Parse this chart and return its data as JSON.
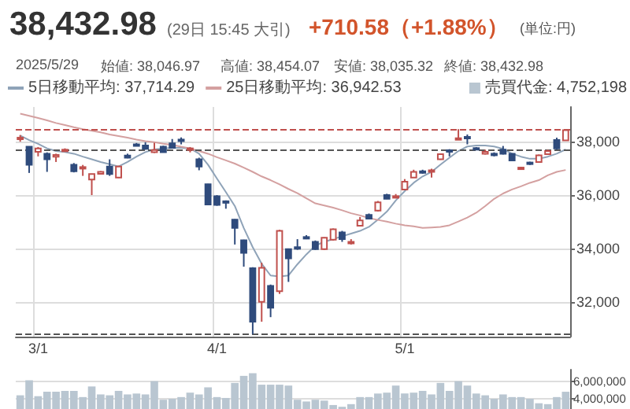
{
  "chart_data": [
    {
      "type": "candlestick",
      "title": "38,432.98",
      "subtitle": "(29日 15:45 大引)",
      "annotations": [
        "+710.58（+1.88%）",
        "(単位:円)",
        "2025/5/29",
        "始値: 38,046.97",
        "高値: 38,454.07",
        "安値: 38,035.32",
        "終値: 38,432.98"
      ],
      "categories": [
        null,
        null,
        "3/1",
        null,
        null,
        null,
        null,
        null,
        null,
        null,
        null,
        null,
        null,
        null,
        null,
        null,
        null,
        null,
        null,
        null,
        null,
        null,
        "4/1",
        null,
        null,
        null,
        null,
        null,
        null,
        null,
        null,
        null,
        null,
        null,
        null,
        null,
        null,
        null,
        null,
        null,
        null,
        null,
        null,
        "5/1",
        null,
        null,
        null,
        null,
        null,
        null,
        null,
        null,
        null,
        null,
        null,
        null,
        null,
        null,
        null,
        null,
        null,
        null
      ],
      "ohlc": [
        [
          38100,
          38250,
          38000,
          38150
        ],
        [
          37815,
          37815,
          36830,
          37135
        ],
        [
          37620,
          37800,
          37450,
          37750
        ],
        [
          37550,
          37600,
          36870,
          37340
        ],
        [
          37440,
          37550,
          37240,
          37500
        ],
        [
          37650,
          37750,
          37620,
          37700
        ],
        [
          37135,
          37200,
          36850,
          36890
        ],
        [
          37000,
          37130,
          36720,
          37050
        ],
        [
          36580,
          36800,
          36000,
          36790
        ],
        [
          36800,
          36900,
          36780,
          36870
        ],
        [
          37070,
          37340,
          36720,
          36790
        ],
        [
          36660,
          37100,
          36640,
          37070
        ],
        [
          37480,
          37550,
          37380,
          37400
        ],
        [
          37900,
          37950,
          37850,
          37860
        ],
        [
          37860,
          37980,
          37700,
          37730
        ],
        [
          37610,
          37960,
          37580,
          37690
        ],
        [
          37810,
          37850,
          37600,
          37610
        ],
        [
          37940,
          38100,
          37750,
          37770
        ],
        [
          38080,
          38160,
          37900,
          38040
        ],
        [
          37700,
          37800,
          37600,
          37750
        ],
        [
          37340,
          37400,
          36930,
          37070
        ],
        [
          36410,
          36420,
          35620,
          35650
        ],
        [
          35960,
          36000,
          35600,
          35630
        ],
        [
          35770,
          35800,
          35490,
          35730
        ],
        [
          35080,
          35100,
          34150,
          34770
        ],
        [
          34310,
          34330,
          33320,
          33840
        ],
        [
          33260,
          33300,
          30792,
          31260
        ],
        [
          32000,
          33470,
          31260,
          33280
        ],
        [
          32600,
          32650,
          31430,
          31780
        ],
        [
          32400,
          34700,
          32300,
          34660
        ],
        [
          33980,
          34000,
          32750,
          33630
        ],
        [
          34050,
          34350,
          33950,
          34040
        ],
        [
          34430,
          34500,
          34350,
          34400
        ],
        [
          34250,
          34300,
          33950,
          33980
        ],
        [
          33980,
          34420,
          33950,
          34400
        ],
        [
          34330,
          34750,
          34300,
          34720
        ],
        [
          34600,
          34660,
          34250,
          34350
        ],
        [
          34230,
          34350,
          34150,
          34250
        ],
        [
          34850,
          35180,
          34830,
          35050
        ],
        [
          35260,
          35310,
          35100,
          35120
        ],
        [
          35420,
          35780,
          35390,
          35730
        ],
        [
          36000,
          36050,
          35850,
          35860
        ],
        [
          35940,
          36040,
          35880,
          35960
        ],
        [
          36210,
          36600,
          36180,
          36500
        ],
        [
          36660,
          36950,
          36650,
          36870
        ],
        [
          36890,
          36950,
          36800,
          36830
        ],
        [
          36870,
          36990,
          36660,
          36930
        ],
        [
          37340,
          37560,
          37320,
          37530
        ],
        [
          37680,
          37720,
          37450,
          37650
        ],
        [
          38120,
          38470,
          38100,
          38130
        ],
        [
          38180,
          38270,
          37900,
          38160
        ],
        [
          37760,
          37800,
          37700,
          37740
        ],
        [
          37550,
          37700,
          37520,
          37620
        ],
        [
          37550,
          37600,
          37450,
          37500
        ],
        [
          37700,
          37840,
          37520,
          37550
        ],
        [
          37550,
          37560,
          37280,
          37300
        ],
        [
          37000,
          37060,
          36950,
          37030
        ],
        [
          37220,
          37250,
          37130,
          37190
        ],
        [
          37240,
          37520,
          37230,
          37490
        ],
        [
          37530,
          37700,
          37520,
          37650
        ],
        [
          38060,
          38150,
          37700,
          37750
        ],
        [
          38046.97,
          38454.07,
          38035.32,
          38432.98
        ]
      ],
      "colors": [
        "#c0504d",
        "#2f4b7c",
        "#c0504d",
        "#2f4b7c",
        "#c0504d",
        "#c0504d",
        "#2f4b7c",
        "#c0504d",
        "#c0504d",
        "#c0504d",
        "#2f4b7c",
        "#c0504d",
        "#2f4b7c",
        "#2f4b7c",
        "#2f4b7c",
        "#c0504d",
        "#2f4b7c",
        "#2f4b7c",
        "#2f4b7c",
        "#c0504d",
        "#2f4b7c",
        "#2f4b7c",
        "#2f4b7c",
        "#2f4b7c",
        "#2f4b7c",
        "#2f4b7c",
        "#2f4b7c",
        "#c0504d",
        "#2f4b7c",
        "#c0504d",
        "#2f4b7c",
        "#2f4b7c",
        "#2f4b7c",
        "#2f4b7c",
        "#c0504d",
        "#c0504d",
        "#2f4b7c",
        "#c0504d",
        "#c0504d",
        "#2f4b7c",
        "#c0504d",
        "#2f4b7c",
        "#c0504d",
        "#c0504d",
        "#c0504d",
        "#2f4b7c",
        "#c0504d",
        "#c0504d",
        "#2f4b7c",
        "#c0504d",
        "#2f4b7c",
        "#2f4b7c",
        "#c0504d",
        "#2f4b7c",
        "#2f4b7c",
        "#2f4b7c",
        "#c0504d",
        "#2f4b7c",
        "#c0504d",
        "#c0504d",
        "#2f4b7c",
        "#c0504d"
      ],
      "series": [
        {
          "name": "5日移動平均: 37,714.29",
          "type": "line",
          "color": "#8fa3b8",
          "values": [
            38230,
            38060,
            37920,
            37750,
            37650,
            37610,
            37550,
            37440,
            37340,
            37240,
            37160,
            37070,
            37240,
            37440,
            37610,
            37710,
            37750,
            37770,
            37770,
            37750,
            37550,
            37140,
            36620,
            36110,
            35590,
            34770,
            34050,
            33430,
            32990,
            32950,
            32990,
            33410,
            33780,
            34110,
            34250,
            34350,
            34460,
            34560,
            34660,
            34810,
            35080,
            35380,
            35800,
            36150,
            36460,
            36700,
            36870,
            37140,
            37400,
            37650,
            37820,
            37860,
            37860,
            37820,
            37730,
            37550,
            37440,
            37360,
            37360,
            37440,
            37550,
            37710
          ]
        },
        {
          "name": "25日移動平均: 36,942.53",
          "type": "line",
          "color": "#d4a0a0",
          "values": [
            39050,
            38970,
            38890,
            38800,
            38700,
            38620,
            38540,
            38470,
            38410,
            38350,
            38270,
            38210,
            38150,
            38080,
            38020,
            37980,
            37920,
            37880,
            37810,
            37750,
            37650,
            37550,
            37420,
            37300,
            37180,
            37030,
            36870,
            36700,
            36560,
            36400,
            36230,
            36070,
            35880,
            35690,
            35610,
            35530,
            35430,
            35320,
            35240,
            35140,
            35070,
            35010,
            34930,
            34870,
            34830,
            34770,
            34790,
            34810,
            34870,
            35010,
            35160,
            35340,
            35590,
            35860,
            36060,
            36210,
            36330,
            36460,
            36560,
            36740,
            36870,
            36940
          ]
        }
      ],
      "ylim": [
        30700,
        39300
      ],
      "yticks": [
        {
          "value": 32000,
          "label": "32,000"
        },
        {
          "value": 34000,
          "label": "34,000"
        },
        {
          "value": 36000,
          "label": "36,000"
        },
        {
          "value": 38000,
          "label": "38,000"
        }
      ],
      "ref_lines": [
        {
          "axis": "y",
          "value": 38432.98,
          "color": "#c0504d",
          "line_style": "dashed"
        },
        {
          "axis": "y",
          "value": 37714.29,
          "color": "#555555",
          "line_style": "dashed"
        },
        {
          "axis": "y",
          "value": 30792,
          "color": "#555555",
          "line_style": "dashed"
        }
      ],
      "grid": true,
      "legend": "top left",
      "marker": "none"
    },
    {
      "type": "bar",
      "categories": [
        null,
        null,
        null,
        null,
        null,
        null,
        null,
        null,
        null,
        null,
        null,
        null,
        null,
        null,
        null,
        null,
        null,
        null,
        null,
        null,
        null,
        null,
        null,
        null,
        null,
        null,
        null,
        null,
        null,
        null,
        null,
        null,
        null,
        null,
        null,
        null,
        null,
        null,
        null,
        null,
        null,
        null,
        null,
        null,
        null,
        null,
        null,
        null,
        null,
        null,
        null,
        null,
        null,
        null,
        null,
        null,
        null,
        null,
        null,
        null,
        null,
        null
      ],
      "series": [
        {
          "name": "売買代金: 4,752,198",
          "color": "#b9c6d1",
          "values": [
            4400000,
            6100000,
            4300000,
            4800000,
            4800000,
            4900000,
            4900000,
            4200000,
            5400000,
            4500000,
            4400000,
            4900000,
            4500000,
            4600000,
            4500000,
            6000000,
            3900000,
            4000000,
            4200000,
            4700000,
            4500000,
            5300000,
            4200000,
            4100000,
            5800000,
            6600000,
            6900000,
            5600000,
            5600000,
            5600000,
            5500000,
            3900000,
            3700000,
            3900000,
            3800000,
            3300000,
            3100000,
            3400000,
            4200000,
            4200000,
            4600000,
            4700000,
            5500000,
            4600000,
            4700000,
            4900000,
            4500000,
            5800000,
            4900000,
            6000000,
            5500000,
            4600000,
            4400000,
            4000000,
            4500000,
            4200000,
            4200000,
            4000000,
            3500000,
            3400000,
            4200000,
            4800000
          ]
        }
      ],
      "ylim": [
        0,
        7300000
      ],
      "yticks": [
        {
          "value": 4000000,
          "label": "4,000,000"
        },
        {
          "value": 6000000,
          "label": "6,000,000"
        }
      ],
      "grid": "y",
      "legend": "top right"
    }
  ]
}
